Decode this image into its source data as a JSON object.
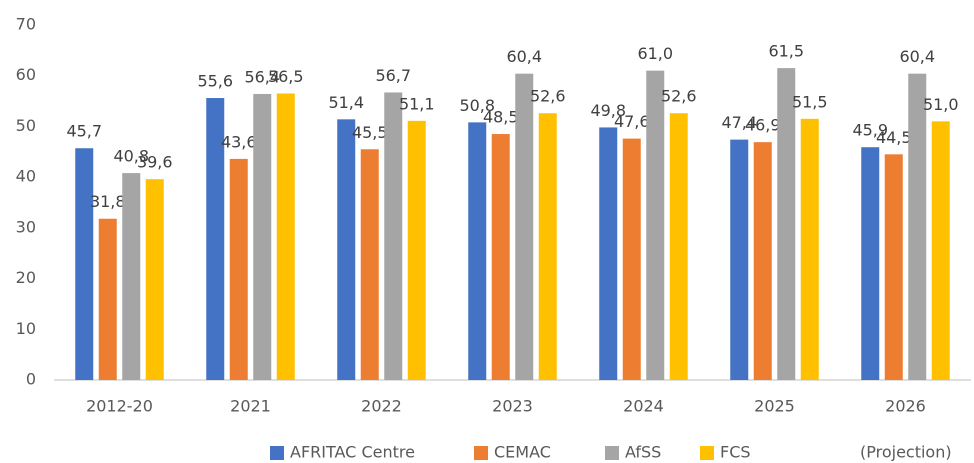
{
  "chart_data": {
    "type": "bar",
    "categories": [
      "2012-20",
      "2021",
      "2022",
      "2023",
      "2024",
      "2025",
      "2026"
    ],
    "series": [
      {
        "name": "AFRITAC Centre",
        "color": "#4472c4",
        "values": [
          45.7,
          55.6,
          51.4,
          50.8,
          49.8,
          47.4,
          45.9
        ],
        "value_labels": [
          "45,7",
          "55,6",
          "51,4",
          "50,8",
          "49,8",
          "47,4",
          "45,9"
        ]
      },
      {
        "name": "CEMAC",
        "color": "#ed7d31",
        "values": [
          31.8,
          43.6,
          45.5,
          48.5,
          47.6,
          46.9,
          44.5
        ],
        "value_labels": [
          "31,8",
          "43,6",
          "45,5",
          "48,5",
          "47,6",
          "46,9",
          "44,5"
        ]
      },
      {
        "name": "AfSS",
        "color": "#a5a5a5",
        "values": [
          40.8,
          56.4,
          56.7,
          60.4,
          61.0,
          61.5,
          60.4
        ],
        "value_labels": [
          "40,8",
          "56,4",
          "56,7",
          "60,4",
          "61,0",
          "61,5",
          "60,4"
        ]
      },
      {
        "name": "FCS",
        "color": "#ffc000",
        "values": [
          39.6,
          56.5,
          51.1,
          52.6,
          52.6,
          51.5,
          51.0
        ],
        "value_labels": [
          "39,6",
          "56,5",
          "51,1",
          "52,6",
          "52,6",
          "51,5",
          "51,0"
        ]
      }
    ],
    "annotation": "(Projection)",
    "ylim": [
      0,
      70
    ],
    "yticks": [
      0,
      10,
      20,
      30,
      40,
      50,
      60,
      70
    ],
    "grid": false,
    "legend": "bottom"
  }
}
